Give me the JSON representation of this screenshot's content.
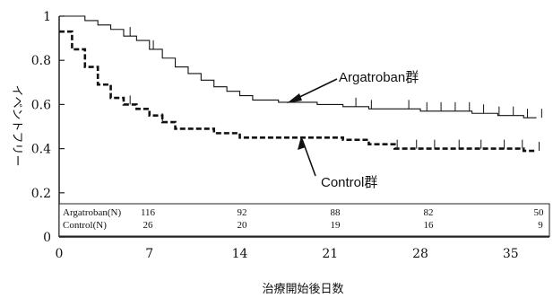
{
  "chart_data": {
    "type": "line",
    "ylabel": "イベントフリー",
    "xlabel": "治療開始後日数",
    "xlim": [
      0,
      38
    ],
    "ylim": [
      0,
      1
    ],
    "x_ticks": [
      0,
      7,
      14,
      21,
      28,
      35
    ],
    "y_ticks": [
      0,
      0.2,
      0.4,
      0.6,
      0.8,
      1
    ],
    "step": true,
    "grid": false,
    "series": [
      {
        "name": "Argatroban群",
        "line_style": "solid",
        "x": [
          0,
          2,
          3,
          4,
          5,
          6,
          7,
          8,
          9,
          10,
          11,
          12,
          13,
          14,
          15,
          17,
          18,
          20,
          22,
          24,
          26,
          28,
          30,
          32,
          34,
          36,
          37
        ],
        "y": [
          1,
          0.98,
          0.96,
          0.94,
          0.91,
          0.89,
          0.85,
          0.81,
          0.77,
          0.74,
          0.71,
          0.68,
          0.66,
          0.64,
          0.62,
          0.61,
          0.61,
          0.6,
          0.59,
          0.58,
          0.58,
          0.57,
          0.57,
          0.56,
          0.55,
          0.54,
          0.54
        ],
        "censor_x": [
          5.5,
          7.3,
          23,
          24.2,
          27.1,
          28.5,
          29.6,
          30.7,
          31.8,
          32.9,
          34.1,
          35.2,
          36.3,
          37.4
        ]
      },
      {
        "name": "Control群",
        "line_style": "dashed",
        "x": [
          0,
          1,
          2,
          3,
          4,
          5,
          6,
          7,
          8,
          9,
          10,
          12,
          13,
          14,
          15,
          16,
          18,
          20,
          22,
          24,
          26,
          28,
          30,
          32,
          34,
          36,
          37
        ],
        "y": [
          0.93,
          0.85,
          0.77,
          0.69,
          0.63,
          0.6,
          0.58,
          0.55,
          0.52,
          0.49,
          0.49,
          0.47,
          0.47,
          0.45,
          0.45,
          0.45,
          0.45,
          0.45,
          0.44,
          0.42,
          0.4,
          0.4,
          0.4,
          0.4,
          0.4,
          0.39,
          0.39
        ],
        "censor_x": [
          5.5,
          8,
          26.2,
          27.7,
          29.1,
          31,
          32.7,
          34.5,
          35.9,
          37.2
        ]
      }
    ],
    "annotations": [
      {
        "text": "Argatroban群",
        "target_series": 0
      },
      {
        "text": "Control群",
        "target_series": 1
      }
    ],
    "risk_table": {
      "rows": [
        {
          "label": "Argatroban(N)",
          "counts": [
            "116",
            "92",
            "88",
            "82",
            "50"
          ]
        },
        {
          "label": "Control(N)",
          "counts": [
            "26",
            "20",
            "19",
            "16",
            "9"
          ]
        }
      ]
    }
  }
}
